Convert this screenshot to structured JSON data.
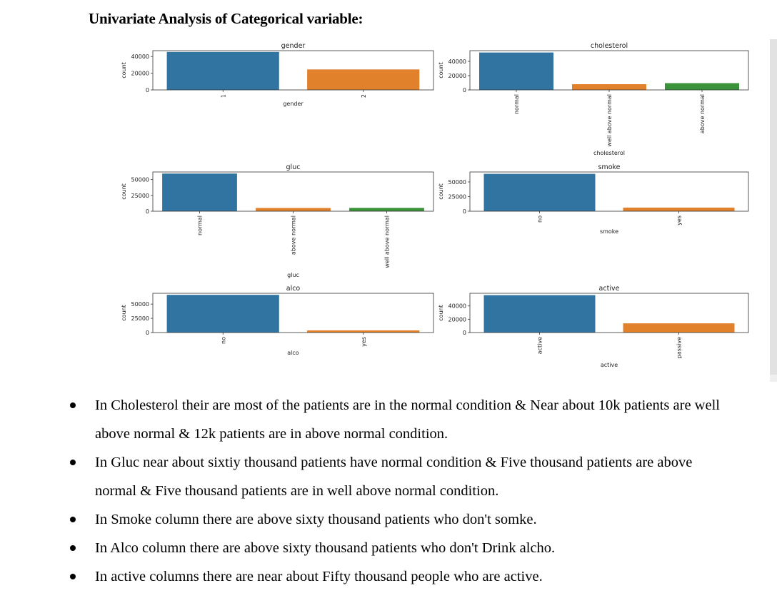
{
  "heading": "Univariate Analysis of Categorical variable:",
  "chart_data": [
    {
      "type": "bar",
      "title": "gender",
      "xlabel": "gender",
      "ylabel": "count",
      "categories": [
        "1",
        "2"
      ],
      "values": [
        45500,
        24500
      ],
      "ylim": [
        0,
        47000
      ],
      "yticks": [
        0,
        20000,
        40000
      ],
      "rotate_labels": true,
      "colors": [
        "#3274a1",
        "#e1812c"
      ]
    },
    {
      "type": "bar",
      "title": "cholesterol",
      "xlabel": "cholesterol",
      "ylabel": "count",
      "categories": [
        "normal",
        "well above normal",
        "above normal"
      ],
      "values": [
        52400,
        8000,
        9500
      ],
      "ylim": [
        0,
        55000
      ],
      "yticks": [
        0,
        20000,
        40000
      ],
      "rotate_labels": true,
      "colors": [
        "#3274a1",
        "#e1812c",
        "#3a923a"
      ]
    },
    {
      "type": "bar",
      "title": "gluc",
      "xlabel": "gluc",
      "ylabel": "count",
      "categories": [
        "normal",
        "above normal",
        "well above normal"
      ],
      "values": [
        59500,
        5200,
        5300
      ],
      "ylim": [
        0,
        62000
      ],
      "yticks": [
        0,
        25000,
        50000
      ],
      "rotate_labels": true,
      "colors": [
        "#3274a1",
        "#e1812c",
        "#3a923a"
      ]
    },
    {
      "type": "bar",
      "title": "smoke",
      "xlabel": "smoke",
      "ylabel": "count",
      "categories": [
        "no",
        "yes"
      ],
      "values": [
        63800,
        6200
      ],
      "ylim": [
        0,
        67000
      ],
      "yticks": [
        0,
        25000,
        50000
      ],
      "rotate_labels": true,
      "colors": [
        "#3274a1",
        "#e1812c"
      ]
    },
    {
      "type": "bar",
      "title": "alco",
      "xlabel": "alco",
      "ylabel": "count",
      "categories": [
        "no",
        "yes"
      ],
      "values": [
        66200,
        3800
      ],
      "ylim": [
        0,
        69000
      ],
      "yticks": [
        0,
        25000,
        50000
      ],
      "rotate_labels": true,
      "colors": [
        "#3274a1",
        "#e1812c"
      ]
    },
    {
      "type": "bar",
      "title": "active",
      "xlabel": "active",
      "ylabel": "count",
      "categories": [
        "active",
        "passive"
      ],
      "values": [
        56200,
        13800
      ],
      "ylim": [
        0,
        59000
      ],
      "yticks": [
        0,
        20000,
        40000
      ],
      "rotate_labels": true,
      "colors": [
        "#3274a1",
        "#e1812c"
      ]
    }
  ],
  "bullets": [
    "In Cholesterol their are most of the patients are in the normal condition & Near about 10k patients are well above normal & 12k patients are in above normal condition.",
    "In Gluc near about sixtiy thousand patients have normal condition & Five thousand patients are above normal & Five thousand   patients are in well above normal condition.",
    "In Smoke column there are above sixty thousand patients who don't somke.",
    "In Alco column there are above sixty thousand patients who don't Drink alcho.",
    "In active columns there are near about Fifty thousand people who are active."
  ]
}
